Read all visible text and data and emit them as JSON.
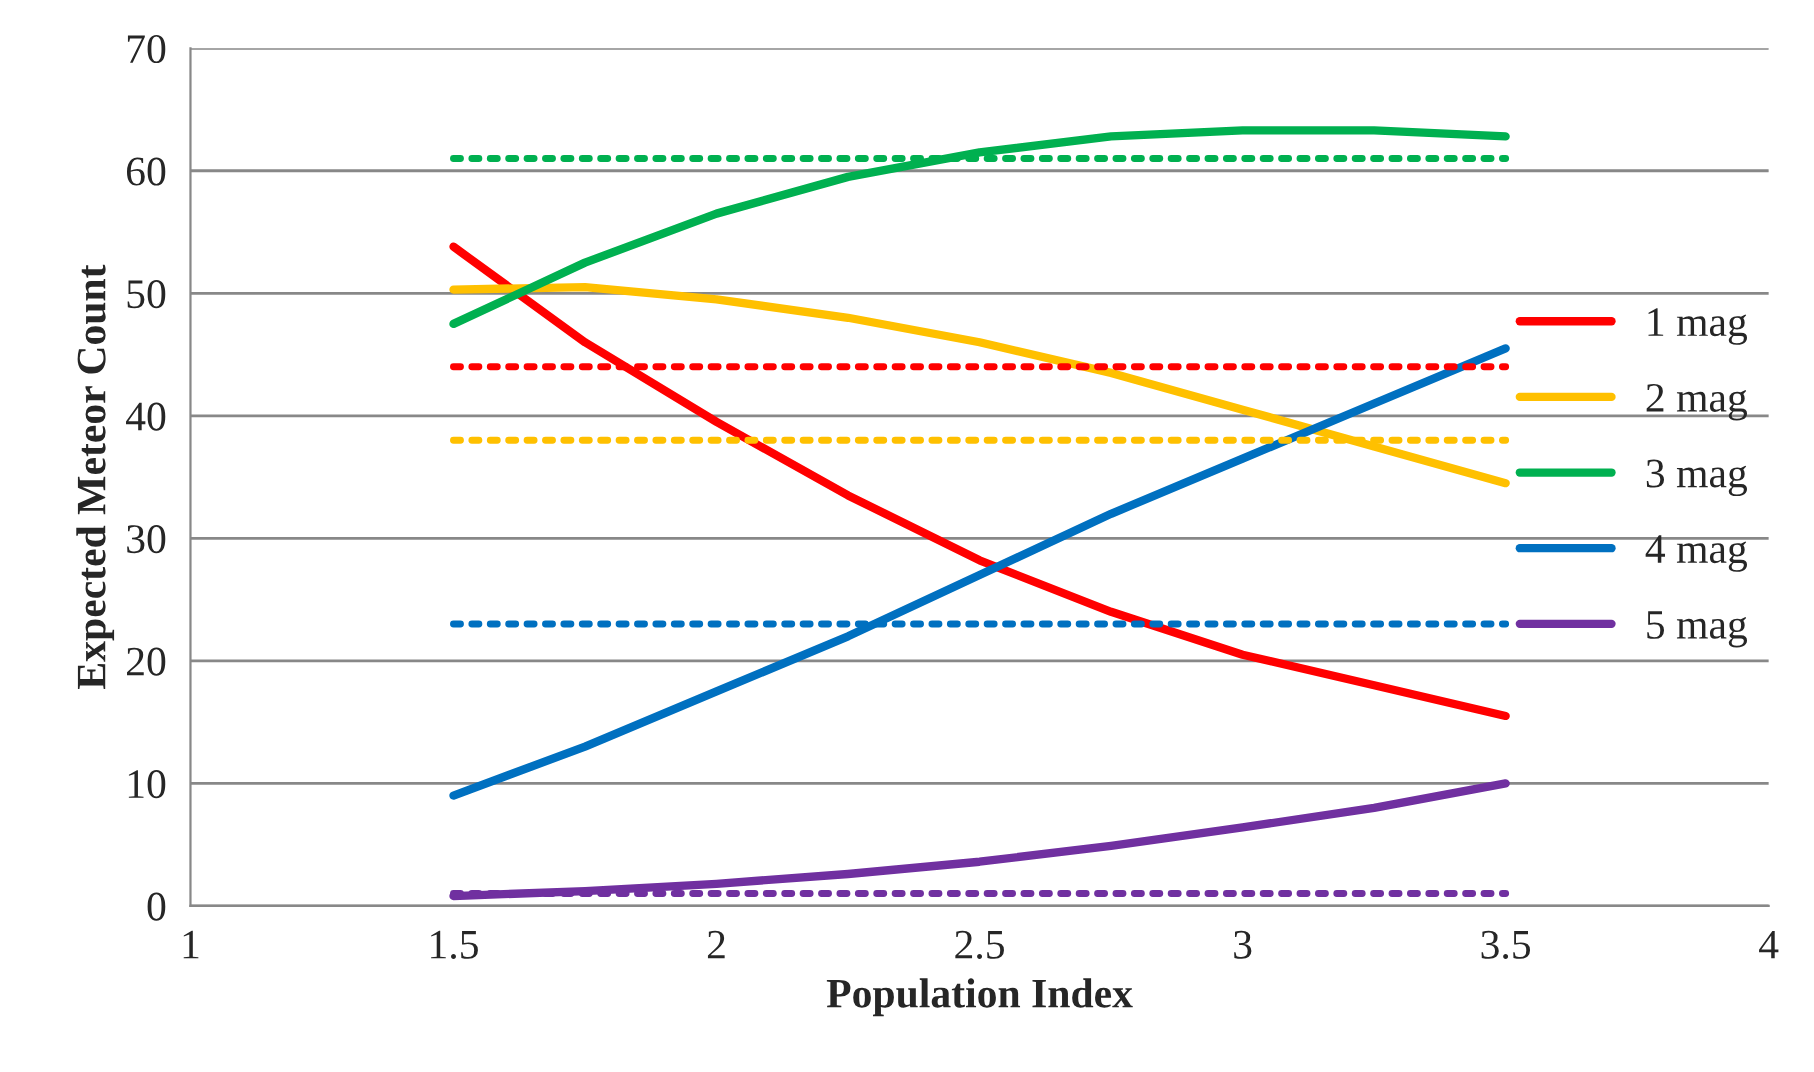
{
  "chart_data": {
    "type": "line",
    "xlabel": "Population Index",
    "ylabel": "Expected Meteor Count",
    "xlim": [
      1,
      4
    ],
    "xticks": [
      1,
      1.5,
      2,
      2.5,
      3,
      3.5,
      4
    ],
    "ylim": [
      0,
      70
    ],
    "yticks": [
      0,
      10,
      20,
      30,
      40,
      50,
      60,
      70
    ],
    "x": [
      1.5,
      1.75,
      2,
      2.25,
      2.5,
      2.75,
      3,
      3.25,
      3.5
    ],
    "grid": "y",
    "legend": "right",
    "marker": "none",
    "line_style": "solid",
    "series": [
      {
        "name": "1 mag",
        "color": "#ff0000",
        "values": [
          53.8,
          46,
          39.5,
          33.5,
          28.2,
          24,
          20.5,
          18,
          15.5
        ]
      },
      {
        "name": "2 mag",
        "color": "#ffc000",
        "values": [
          50.3,
          50.5,
          49.5,
          48,
          46,
          43.5,
          40.5,
          37.5,
          34.5
        ]
      },
      {
        "name": "3 mag",
        "color": "#00b050",
        "values": [
          47.5,
          52.5,
          56.5,
          59.5,
          61.5,
          62.8,
          63.3,
          63.3,
          62.8
        ]
      },
      {
        "name": "4 mag",
        "color": "#0070c0",
        "values": [
          9,
          13,
          17.5,
          22,
          27,
          32,
          36.5,
          41,
          45.5
        ]
      },
      {
        "name": "5 mag",
        "color": "#7030a0",
        "values": [
          0.8,
          1.2,
          1.8,
          2.6,
          3.6,
          4.9,
          6.4,
          8,
          10
        ]
      },
      {
        "color": "#ff0000",
        "line_style": "dotted",
        "values": [
          44,
          44,
          44,
          44,
          44,
          44,
          44,
          44,
          44
        ]
      },
      {
        "color": "#ffc000",
        "line_style": "dotted",
        "values": [
          38,
          38,
          38,
          38,
          38,
          38,
          38,
          38,
          38
        ]
      },
      {
        "color": "#00b050",
        "line_style": "dotted",
        "values": [
          61,
          61,
          61,
          61,
          61,
          61,
          61,
          61,
          61
        ]
      },
      {
        "color": "#0070c0",
        "line_style": "dotted",
        "values": [
          23,
          23,
          23,
          23,
          23,
          23,
          23,
          23,
          23
        ]
      },
      {
        "color": "#7030a0",
        "line_style": "dotted",
        "values": [
          1,
          1,
          1,
          1,
          1,
          1,
          1,
          1,
          1
        ]
      }
    ]
  }
}
